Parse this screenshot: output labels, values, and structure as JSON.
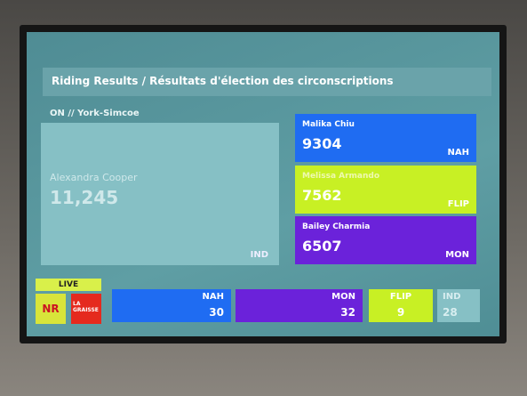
{
  "header": {
    "title": "Riding Results / Résultats d'élection des circonscriptions",
    "riding": "ON // York-Simcoe"
  },
  "winner": {
    "name": "Alexandra Cooper",
    "votes": "11,245",
    "party": "IND"
  },
  "candidates": [
    {
      "name": "Malika Chiu",
      "votes": 9304,
      "party": "NAH"
    },
    {
      "name": "Melissa Armando",
      "votes": 7562,
      "party": "FLIP"
    },
    {
      "name": "Bailey Charmia",
      "votes": 6507,
      "party": "MON"
    }
  ],
  "footer": {
    "live": "LIVE",
    "logos": [
      "NR",
      "LA GRAISSE"
    ]
  },
  "seats": [
    {
      "party": "NAH",
      "seats": 30
    },
    {
      "party": "MON",
      "seats": 32
    },
    {
      "party": "FLIP",
      "seats": 9
    },
    {
      "party": "IND",
      "seats": 28
    }
  ]
}
